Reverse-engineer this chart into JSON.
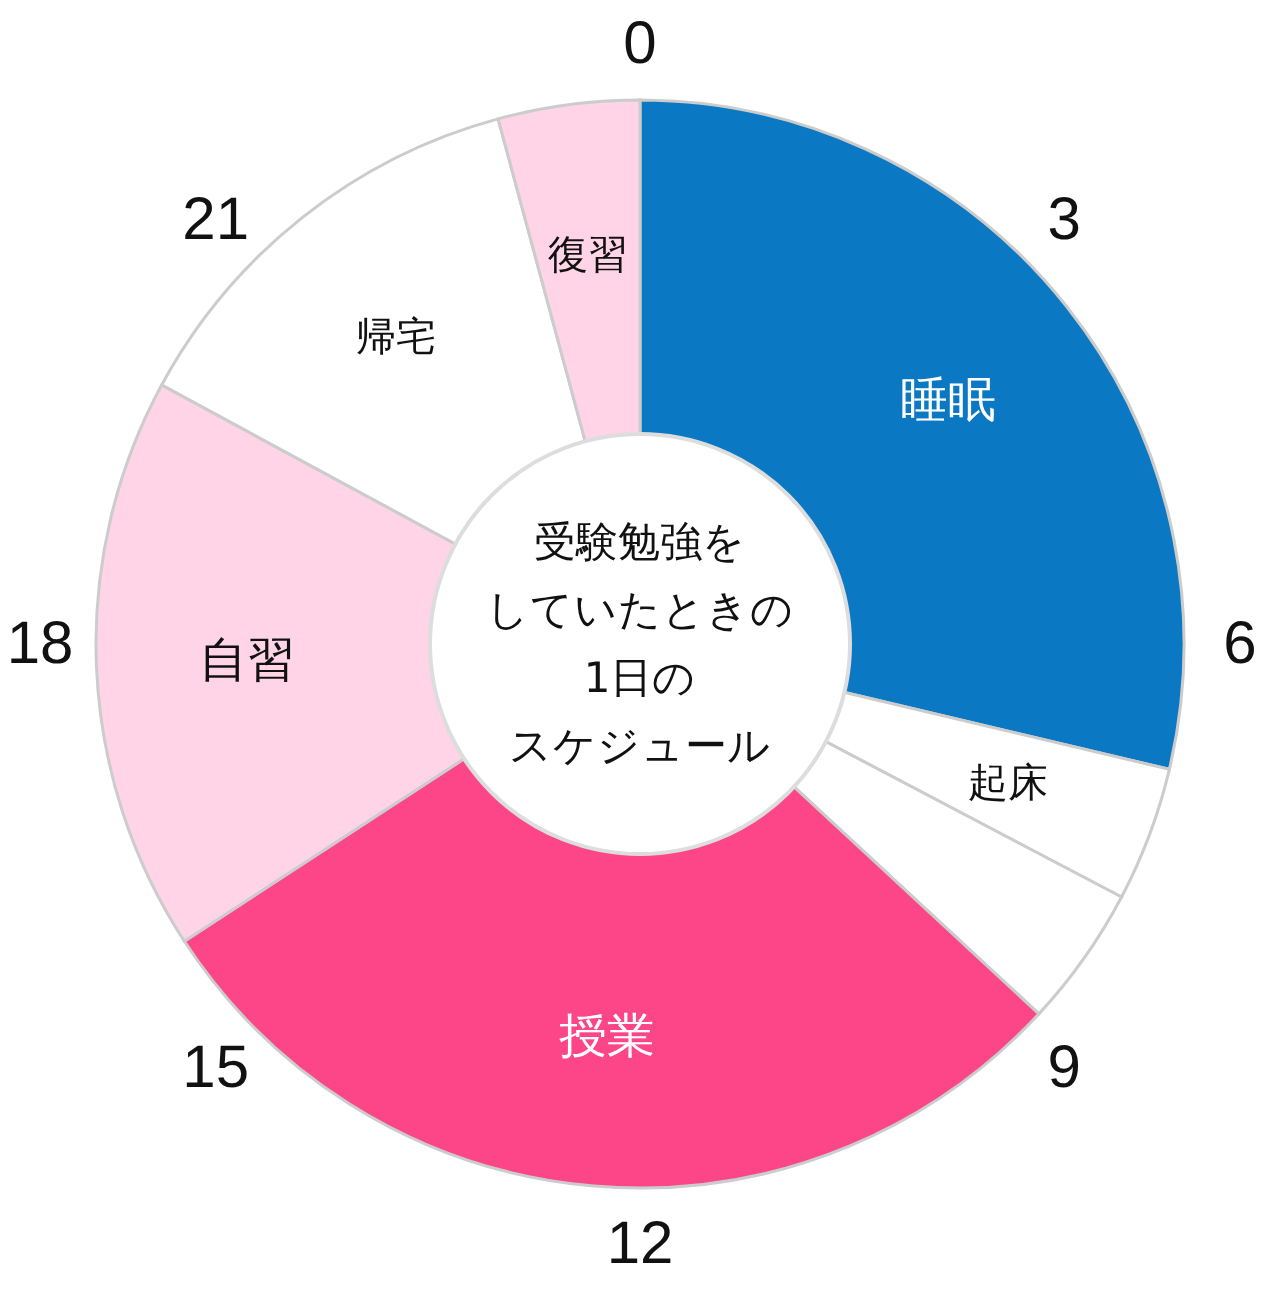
{
  "chart_data": {
    "type": "donut",
    "title": "受験勉強をしていたときの1日のスケジュール",
    "categories": [
      "睡眠",
      "起床",
      null,
      "授業",
      "自習",
      "帰宅",
      "復習"
    ],
    "values": [
      28.7,
      4.0,
      4.2,
      28.9,
      17.1,
      12.9,
      4.2
    ],
    "colors": [
      "#0b78c3",
      "#ffffff",
      "#ffffff",
      "#fc4687",
      "#fed4e6",
      "#ffffff",
      "#fed4e6"
    ],
    "annotations": [
      "0",
      "3",
      "6",
      "9",
      "12",
      "15",
      "18",
      "21"
    ]
  }
}
